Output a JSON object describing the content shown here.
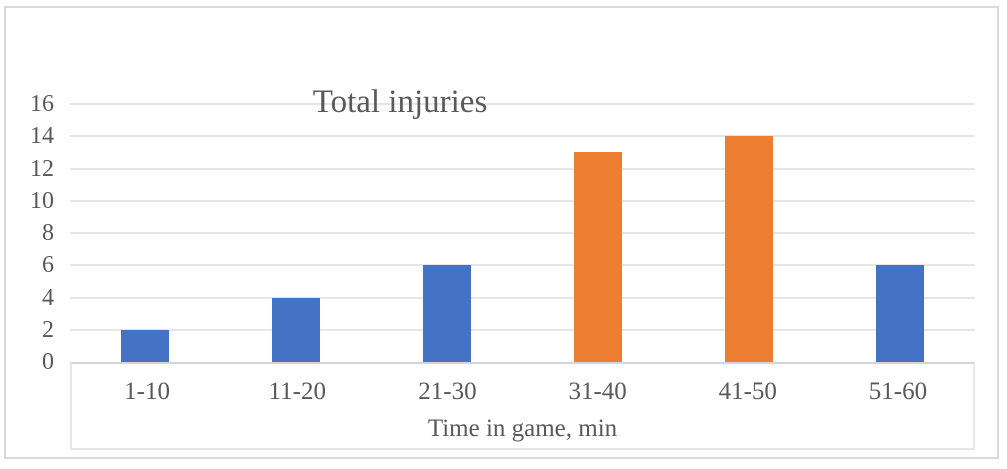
{
  "chart_data": {
    "type": "bar",
    "title": "Total injuries",
    "categories": [
      "1-10",
      "11-20",
      "21-30",
      "31-40",
      "41-50",
      "51-60"
    ],
    "values": [
      2,
      4,
      6,
      13,
      14,
      6
    ],
    "bar_colors": [
      "#4472C4",
      "#4472C4",
      "#4472C4",
      "#ED7D31",
      "#ED7D31",
      "#4472C4"
    ],
    "xlabel": "Time in game, min",
    "ylabel": "",
    "ylim": [
      0,
      16
    ],
    "yticks": [
      0,
      2,
      4,
      6,
      8,
      10,
      12,
      14,
      16
    ],
    "grid": true,
    "legend": "none",
    "colors": {
      "blue_series": "#4472C4",
      "orange_series": "#ED7D31",
      "text": "#595959",
      "gridline": "#e7e6e6",
      "axis_line": "#d6d4d4",
      "frame_border": "#d9d9d9"
    }
  }
}
